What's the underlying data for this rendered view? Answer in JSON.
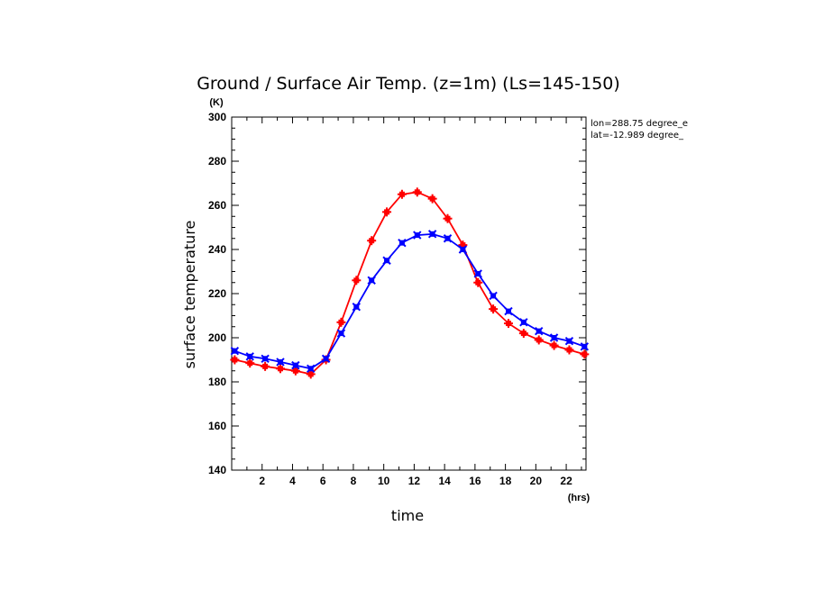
{
  "chart_data": {
    "type": "line",
    "title": "Ground / Surface Air Temp. (z=1m) (Ls=145-150)",
    "xlabel": "time",
    "ylabel": "surface temperature",
    "x_unit": "(hrs)",
    "y_unit": "(K)",
    "xlim": [
      0,
      23.3
    ],
    "ylim": [
      140,
      300
    ],
    "xticks": [
      2,
      4,
      6,
      8,
      10,
      12,
      14,
      16,
      18,
      20,
      22
    ],
    "yticks": [
      140,
      160,
      180,
      200,
      220,
      240,
      260,
      280,
      300
    ],
    "annotations": [
      "lon=288.75 degree_e",
      "lat=-12.989 degree_"
    ],
    "grid": false,
    "legend": "none",
    "x": [
      0.2,
      1.2,
      2.2,
      3.2,
      4.2,
      5.2,
      6.2,
      7.2,
      8.2,
      9.2,
      10.2,
      11.2,
      12.2,
      13.2,
      14.2,
      15.2,
      16.2,
      17.2,
      18.2,
      19.2,
      20.2,
      21.2,
      22.2,
      23.2
    ],
    "series": [
      {
        "color": "#ff0000",
        "marker": "plus",
        "values": [
          190,
          188.5,
          187,
          186,
          185,
          183.5,
          190,
          207,
          226,
          244,
          257,
          265,
          266,
          263,
          254,
          242,
          225,
          213,
          206.5,
          202,
          199,
          196.5,
          194.5,
          192.5
        ]
      },
      {
        "color": "#0000ff",
        "marker": "x",
        "values": [
          194,
          191.5,
          190.5,
          189,
          187.5,
          186,
          190.5,
          202,
          214,
          226,
          235,
          243,
          246.5,
          247,
          245,
          240,
          229,
          219,
          212,
          207,
          203,
          200,
          198.5,
          196
        ]
      }
    ]
  }
}
